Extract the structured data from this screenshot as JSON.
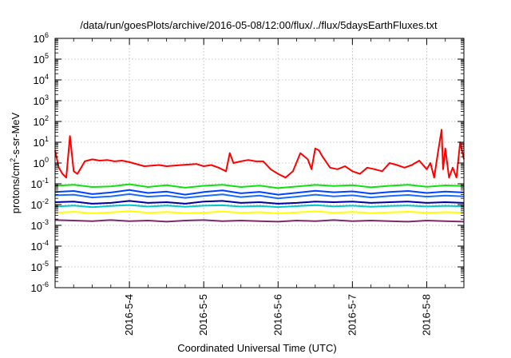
{
  "chart_data": {
    "type": "line",
    "title": "/data/run/goesPlots/archive/2016-05-08/12:00/flux/../flux/5daysEarthFluxes.txt",
    "xlabel": "Coordinated Universal Time (UTC)",
    "ylabel_parts": {
      "a": "protons/cm",
      "sup": "2",
      "b": "-s-sr-MeV"
    },
    "xlim": [
      3.0,
      8.5
    ],
    "ylim_exp": [
      -6,
      6
    ],
    "yscale": "log",
    "grid": true,
    "x_ticks": [
      {
        "x": 4,
        "label": "2016-5-4"
      },
      {
        "x": 5,
        "label": "2016-5-5"
      },
      {
        "x": 6,
        "label": "2016-5-6"
      },
      {
        "x": 7,
        "label": "2016-5-7"
      },
      {
        "x": 8,
        "label": "2016-5-8"
      }
    ],
    "y_ticks": [
      {
        "exp": 6,
        "base": "10",
        "sup": "6"
      },
      {
        "exp": 5,
        "base": "10",
        "sup": "5"
      },
      {
        "exp": 4,
        "base": "10",
        "sup": "4"
      },
      {
        "exp": 3,
        "base": "10",
        "sup": "3"
      },
      {
        "exp": 2,
        "base": "10",
        "sup": "2"
      },
      {
        "exp": 1,
        "base": "10",
        "sup": "1"
      },
      {
        "exp": 0,
        "base": "10",
        "sup": "0"
      },
      {
        "exp": -1,
        "base": "10",
        "sup": "-1"
      },
      {
        "exp": -2,
        "base": "10",
        "sup": "-2"
      },
      {
        "exp": -3,
        "base": "10",
        "sup": "-3"
      },
      {
        "exp": -4,
        "base": "10",
        "sup": "-4"
      },
      {
        "exp": -5,
        "base": "10",
        "sup": "-5"
      },
      {
        "exp": -6,
        "base": "10",
        "sup": "-6"
      }
    ],
    "series": [
      {
        "color": "#7b2a6e",
        "x": [
          3.0,
          3.25,
          3.5,
          3.75,
          4.0,
          4.25,
          4.5,
          4.75,
          5.0,
          5.25,
          5.5,
          5.75,
          6.0,
          6.25,
          6.5,
          6.75,
          7.0,
          7.25,
          7.5,
          7.75,
          8.0,
          8.25,
          8.5
        ],
        "y": [
          0.0018,
          0.0017,
          0.0016,
          0.0018,
          0.0016,
          0.0017,
          0.0015,
          0.0017,
          0.0018,
          0.0016,
          0.0017,
          0.0016,
          0.0015,
          0.0017,
          0.0016,
          0.0018,
          0.0016,
          0.0017,
          0.0016,
          0.0015,
          0.0017,
          0.0016,
          0.0015
        ]
      },
      {
        "color": "#ffff00",
        "x": [
          3.0,
          3.25,
          3.5,
          3.75,
          4.0,
          4.25,
          4.5,
          4.75,
          5.0,
          5.25,
          5.5,
          5.75,
          6.0,
          6.25,
          6.5,
          6.75,
          7.0,
          7.25,
          7.5,
          7.75,
          8.0,
          8.25,
          8.5
        ],
        "y": [
          0.004,
          0.0045,
          0.0038,
          0.0042,
          0.0048,
          0.004,
          0.0044,
          0.0039,
          0.0041,
          0.0046,
          0.004,
          0.0043,
          0.0038,
          0.0042,
          0.0047,
          0.004,
          0.0044,
          0.0039,
          0.0042,
          0.0045,
          0.004,
          0.0043,
          0.0041
        ]
      },
      {
        "color": "#00c8c8",
        "x": [
          3.0,
          3.25,
          3.5,
          3.75,
          4.0,
          4.25,
          4.5,
          4.75,
          5.0,
          5.25,
          5.5,
          5.75,
          6.0,
          6.25,
          6.5,
          6.75,
          7.0,
          7.25,
          7.5,
          7.75,
          8.0,
          8.25,
          8.5
        ],
        "y": [
          0.008,
          0.009,
          0.0075,
          0.0085,
          0.0095,
          0.008,
          0.009,
          0.0078,
          0.0088,
          0.0092,
          0.008,
          0.0086,
          0.0076,
          0.0084,
          0.0094,
          0.0082,
          0.0088,
          0.0079,
          0.0086,
          0.009,
          0.0081,
          0.0087,
          0.0083
        ]
      },
      {
        "color": "#0000a0",
        "x": [
          3.0,
          3.25,
          3.5,
          3.75,
          4.0,
          4.25,
          4.5,
          4.75,
          5.0,
          5.25,
          5.5,
          5.75,
          6.0,
          6.25,
          6.5,
          6.75,
          7.0,
          7.25,
          7.5,
          7.75,
          8.0,
          8.25,
          8.5
        ],
        "y": [
          0.013,
          0.014,
          0.011,
          0.012,
          0.015,
          0.012,
          0.013,
          0.011,
          0.014,
          0.015,
          0.012,
          0.013,
          0.011,
          0.012,
          0.014,
          0.013,
          0.014,
          0.012,
          0.013,
          0.014,
          0.012,
          0.013,
          0.012
        ]
      },
      {
        "color": "#1a6cff",
        "x": [
          3.0,
          3.25,
          3.5,
          3.75,
          4.0,
          4.25,
          4.5,
          4.75,
          5.0,
          5.25,
          5.5,
          5.75,
          6.0,
          6.25,
          6.5,
          6.75,
          7.0,
          7.25,
          7.5,
          7.75,
          8.0,
          8.25,
          8.5
        ],
        "y": [
          0.028,
          0.03,
          0.022,
          0.025,
          0.032,
          0.024,
          0.027,
          0.021,
          0.026,
          0.031,
          0.023,
          0.027,
          0.02,
          0.024,
          0.03,
          0.025,
          0.028,
          0.022,
          0.026,
          0.029,
          0.024,
          0.027,
          0.025
        ]
      },
      {
        "color": "#0044ff",
        "x": [
          3.0,
          3.25,
          3.5,
          3.75,
          4.0,
          4.25,
          4.5,
          4.75,
          5.0,
          5.25,
          5.5,
          5.75,
          6.0,
          6.25,
          6.5,
          6.75,
          7.0,
          7.25,
          7.5,
          7.75,
          8.0,
          8.25,
          8.5
        ],
        "y": [
          0.04,
          0.045,
          0.032,
          0.038,
          0.05,
          0.036,
          0.042,
          0.03,
          0.04,
          0.048,
          0.035,
          0.041,
          0.03,
          0.037,
          0.046,
          0.039,
          0.043,
          0.034,
          0.04,
          0.045,
          0.036,
          0.042,
          0.038
        ]
      },
      {
        "color": "#10e010",
        "x": [
          3.0,
          3.25,
          3.5,
          3.75,
          4.0,
          4.25,
          4.5,
          4.75,
          5.0,
          5.25,
          5.5,
          5.75,
          6.0,
          6.25,
          6.5,
          6.75,
          7.0,
          7.25,
          7.5,
          7.75,
          8.0,
          8.25,
          8.5
        ],
        "y": [
          0.08,
          0.09,
          0.07,
          0.075,
          0.095,
          0.07,
          0.085,
          0.065,
          0.08,
          0.09,
          0.07,
          0.082,
          0.062,
          0.074,
          0.088,
          0.078,
          0.086,
          0.068,
          0.08,
          0.09,
          0.072,
          0.084,
          0.078
        ]
      },
      {
        "color": "#ff0000",
        "x": [
          3.0,
          3.05,
          3.1,
          3.15,
          3.2,
          3.25,
          3.3,
          3.35,
          3.4,
          3.5,
          3.6,
          3.7,
          3.8,
          3.9,
          4.0,
          4.2,
          4.4,
          4.5,
          4.7,
          4.9,
          5.0,
          5.1,
          5.2,
          5.3,
          5.35,
          5.4,
          5.5,
          5.6,
          5.7,
          5.8,
          5.9,
          6.0,
          6.1,
          6.2,
          6.3,
          6.4,
          6.45,
          6.5,
          6.55,
          6.6,
          6.7,
          6.8,
          6.9,
          7.0,
          7.1,
          7.2,
          7.3,
          7.4,
          7.5,
          7.6,
          7.7,
          7.8,
          7.9,
          8.0,
          8.05,
          8.1,
          8.15,
          8.2,
          8.22,
          8.25,
          8.3,
          8.35,
          8.4,
          8.45,
          8.5
        ],
        "y": [
          4,
          0.6,
          0.3,
          0.2,
          20,
          0.4,
          0.3,
          0.6,
          1.2,
          1.5,
          1.3,
          1.4,
          1.2,
          1.3,
          1.1,
          0.7,
          0.8,
          0.7,
          0.8,
          0.9,
          0.7,
          0.8,
          0.6,
          0.4,
          3,
          1.0,
          1.2,
          1.4,
          1.2,
          1.2,
          0.5,
          0.3,
          0.2,
          0.4,
          3,
          1.5,
          0.5,
          5,
          4,
          2,
          0.6,
          0.5,
          0.7,
          0.4,
          0.3,
          0.6,
          0.5,
          0.4,
          1.0,
          0.8,
          0.6,
          0.8,
          1.3,
          0.5,
          1.0,
          0.2,
          3,
          40,
          0.5,
          5,
          0.2,
          0.6,
          0.2,
          10,
          1.5
        ]
      }
    ]
  }
}
